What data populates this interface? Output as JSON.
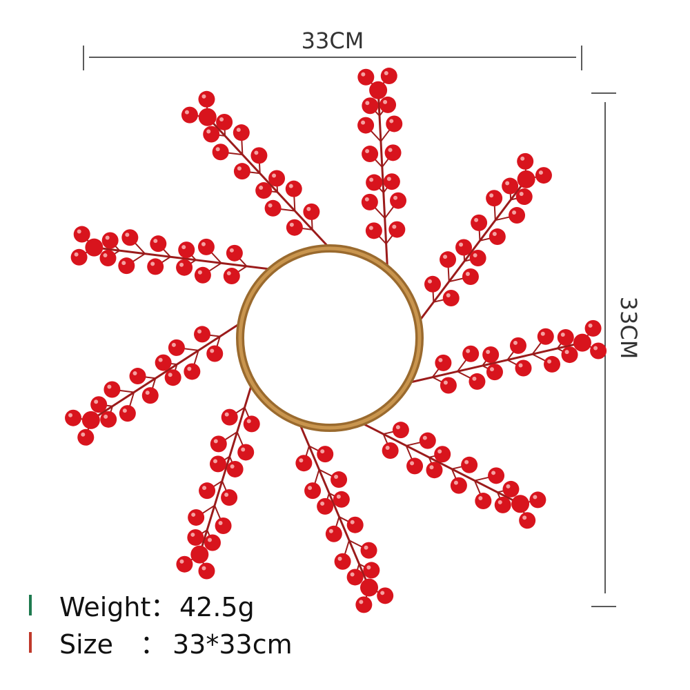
{
  "dimensions": {
    "width": "33CM",
    "height": "33CM"
  },
  "specs": [
    {
      "label": "Weight",
      "separator": "：",
      "value": "42.5g"
    },
    {
      "label": "Size",
      "separator": "：",
      "value": "33*33cm"
    }
  ]
}
